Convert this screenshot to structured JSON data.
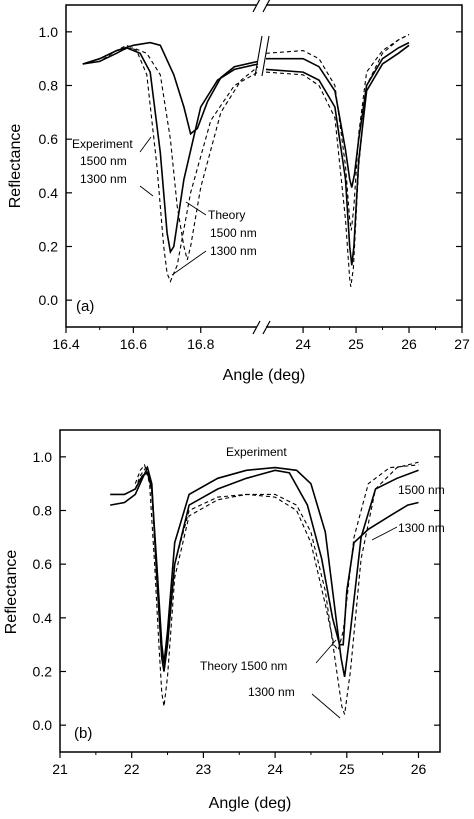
{
  "chart_data": [
    {
      "type": "line",
      "panel_label": "(a)",
      "xlabel": "Angle (deg)",
      "ylabel": "Reflectance",
      "ylim": [
        -0.1,
        1.1
      ],
      "xaxis": "broken",
      "x_segments": [
        {
          "range": [
            16.4,
            16.97
          ],
          "ticks": [
            16.4,
            16.6,
            16.8
          ]
        },
        {
          "range": [
            23.3,
            27.0
          ],
          "ticks": [
            24,
            25,
            26,
            27
          ]
        }
      ],
      "x_tick_labels": [
        "16.4",
        "16.6",
        "16.8",
        "24",
        "25",
        "26",
        "27"
      ],
      "yticks": [
        0.0,
        0.2,
        0.4,
        0.6,
        0.8,
        1.0
      ],
      "y_tick_labels": [
        "0.0",
        "0.2",
        "0.4",
        "0.6",
        "0.8",
        "1.0"
      ],
      "annotations": [
        "Experiment",
        "1500 nm",
        "1300 nm",
        "Theory",
        "1500 nm",
        "1300 nm"
      ],
      "series": [
        {
          "style": "solid",
          "points": [
            [
              16.45,
              0.88
            ],
            [
              16.5,
              0.89
            ],
            [
              16.55,
              0.92
            ],
            [
              16.58,
              0.94
            ],
            [
              16.62,
              0.92
            ],
            [
              16.65,
              0.85
            ],
            [
              16.68,
              0.55
            ],
            [
              16.7,
              0.25
            ],
            [
              16.71,
              0.18
            ],
            [
              16.72,
              0.2
            ],
            [
              16.75,
              0.45
            ],
            [
              16.8,
              0.72
            ],
            [
              16.85,
              0.82
            ],
            [
              16.9,
              0.86
            ],
            [
              16.97,
              0.88
            ],
            [
              23.3,
              0.86
            ],
            [
              24.0,
              0.85
            ],
            [
              24.3,
              0.82
            ],
            [
              24.6,
              0.72
            ],
            [
              24.8,
              0.45
            ],
            [
              24.88,
              0.2
            ],
            [
              24.92,
              0.13
            ],
            [
              24.96,
              0.2
            ],
            [
              25.05,
              0.52
            ],
            [
              25.2,
              0.78
            ],
            [
              25.5,
              0.88
            ],
            [
              25.8,
              0.92
            ],
            [
              26.0,
              0.95
            ]
          ]
        },
        {
          "style": "solid",
          "points": [
            [
              16.45,
              0.88
            ],
            [
              16.5,
              0.9
            ],
            [
              16.55,
              0.93
            ],
            [
              16.6,
              0.95
            ],
            [
              16.65,
              0.96
            ],
            [
              16.68,
              0.95
            ],
            [
              16.72,
              0.84
            ],
            [
              16.75,
              0.72
            ],
            [
              16.77,
              0.62
            ],
            [
              16.79,
              0.64
            ],
            [
              16.82,
              0.74
            ],
            [
              16.86,
              0.83
            ],
            [
              16.9,
              0.87
            ],
            [
              16.97,
              0.89
            ],
            [
              23.3,
              0.9
            ],
            [
              24.0,
              0.9
            ],
            [
              24.3,
              0.87
            ],
            [
              24.6,
              0.78
            ],
            [
              24.8,
              0.56
            ],
            [
              24.88,
              0.45
            ],
            [
              24.92,
              0.42
            ],
            [
              24.97,
              0.47
            ],
            [
              25.05,
              0.6
            ],
            [
              25.2,
              0.8
            ],
            [
              25.5,
              0.9
            ],
            [
              25.8,
              0.94
            ],
            [
              26.0,
              0.96
            ]
          ]
        },
        {
          "style": "dashed",
          "points": [
            [
              16.45,
              0.88
            ],
            [
              16.5,
              0.89
            ],
            [
              16.55,
              0.93
            ],
            [
              16.58,
              0.95
            ],
            [
              16.61,
              0.93
            ],
            [
              16.64,
              0.84
            ],
            [
              16.67,
              0.5
            ],
            [
              16.69,
              0.2
            ],
            [
              16.7,
              0.1
            ],
            [
              16.71,
              0.07
            ],
            [
              16.73,
              0.13
            ],
            [
              16.77,
              0.4
            ],
            [
              16.83,
              0.67
            ],
            [
              16.9,
              0.8
            ],
            [
              16.97,
              0.85
            ],
            [
              23.3,
              0.85
            ],
            [
              24.0,
              0.84
            ],
            [
              24.3,
              0.8
            ],
            [
              24.6,
              0.68
            ],
            [
              24.8,
              0.3
            ],
            [
              24.88,
              0.08
            ],
            [
              24.9,
              0.05
            ],
            [
              24.95,
              0.12
            ],
            [
              25.05,
              0.5
            ],
            [
              25.2,
              0.8
            ],
            [
              25.5,
              0.92
            ],
            [
              25.8,
              0.97
            ],
            [
              26.0,
              0.99
            ]
          ]
        },
        {
          "style": "dashed",
          "points": [
            [
              16.45,
              0.88
            ],
            [
              16.5,
              0.9
            ],
            [
              16.55,
              0.93
            ],
            [
              16.6,
              0.94
            ],
            [
              16.64,
              0.92
            ],
            [
              16.68,
              0.84
            ],
            [
              16.71,
              0.6
            ],
            [
              16.73,
              0.35
            ],
            [
              16.75,
              0.2
            ],
            [
              16.76,
              0.15
            ],
            [
              16.77,
              0.2
            ],
            [
              16.8,
              0.42
            ],
            [
              16.86,
              0.7
            ],
            [
              16.92,
              0.82
            ],
            [
              16.97,
              0.87
            ],
            [
              23.3,
              0.92
            ],
            [
              24.0,
              0.93
            ],
            [
              24.3,
              0.9
            ],
            [
              24.6,
              0.8
            ],
            [
              24.8,
              0.5
            ],
            [
              24.88,
              0.3
            ],
            [
              24.91,
              0.26
            ],
            [
              24.96,
              0.35
            ],
            [
              25.05,
              0.62
            ],
            [
              25.2,
              0.85
            ],
            [
              25.5,
              0.93
            ],
            [
              25.8,
              0.97
            ],
            [
              26.0,
              0.99
            ]
          ]
        }
      ]
    },
    {
      "type": "line",
      "panel_label": "(b)",
      "xlabel": "Angle (deg)",
      "ylabel": "Reflectance",
      "xlim": [
        21,
        26.3
      ],
      "ylim": [
        -0.1,
        1.1
      ],
      "xticks": [
        21,
        22,
        23,
        24,
        25,
        26
      ],
      "x_tick_labels": [
        "21",
        "22",
        "23",
        "24",
        "25",
        "26"
      ],
      "yticks": [
        0.0,
        0.2,
        0.4,
        0.6,
        0.8,
        1.0
      ],
      "y_tick_labels": [
        "0.0",
        "0.2",
        "0.4",
        "0.6",
        "0.8",
        "1.0"
      ],
      "annotations": [
        "Experiment",
        "1500 nm",
        "1300 nm",
        "Theory 1500 nm",
        "1300 nm"
      ],
      "series": [
        {
          "style": "solid",
          "points": [
            [
              21.7,
              0.86
            ],
            [
              21.9,
              0.86
            ],
            [
              22.05,
              0.88
            ],
            [
              22.15,
              0.93
            ],
            [
              22.22,
              0.94
            ],
            [
              22.28,
              0.88
            ],
            [
              22.35,
              0.6
            ],
            [
              22.42,
              0.3
            ],
            [
              22.45,
              0.23
            ],
            [
              22.5,
              0.35
            ],
            [
              22.6,
              0.68
            ],
            [
              22.8,
              0.86
            ],
            [
              23.2,
              0.92
            ],
            [
              23.6,
              0.95
            ],
            [
              24.0,
              0.96
            ],
            [
              24.3,
              0.95
            ],
            [
              24.5,
              0.9
            ],
            [
              24.7,
              0.72
            ],
            [
              24.85,
              0.4
            ],
            [
              24.92,
              0.25
            ],
            [
              24.97,
              0.18
            ],
            [
              25.05,
              0.35
            ],
            [
              25.2,
              0.7
            ],
            [
              25.4,
              0.88
            ],
            [
              25.7,
              0.92
            ],
            [
              26.0,
              0.95
            ]
          ]
        },
        {
          "style": "solid",
          "points": [
            [
              21.7,
              0.82
            ],
            [
              21.9,
              0.83
            ],
            [
              22.05,
              0.86
            ],
            [
              22.15,
              0.92
            ],
            [
              22.22,
              0.96
            ],
            [
              22.28,
              0.9
            ],
            [
              22.35,
              0.55
            ],
            [
              22.42,
              0.25
            ],
            [
              22.45,
              0.2
            ],
            [
              22.5,
              0.3
            ],
            [
              22.6,
              0.6
            ],
            [
              22.8,
              0.82
            ],
            [
              23.2,
              0.88
            ],
            [
              23.6,
              0.92
            ],
            [
              24.0,
              0.95
            ],
            [
              24.2,
              0.94
            ],
            [
              24.45,
              0.82
            ],
            [
              24.65,
              0.62
            ],
            [
              24.8,
              0.4
            ],
            [
              24.9,
              0.3
            ],
            [
              24.95,
              0.3
            ],
            [
              25.0,
              0.5
            ],
            [
              25.1,
              0.68
            ],
            [
              25.3,
              0.73
            ],
            [
              25.6,
              0.78
            ],
            [
              25.85,
              0.82
            ],
            [
              26.0,
              0.83
            ]
          ]
        },
        {
          "style": "dashed",
          "points": [
            [
              22.05,
              0.9
            ],
            [
              22.12,
              0.95
            ],
            [
              22.18,
              0.97
            ],
            [
              22.25,
              0.9
            ],
            [
              22.32,
              0.6
            ],
            [
              22.38,
              0.3
            ],
            [
              22.42,
              0.12
            ],
            [
              22.45,
              0.07
            ],
            [
              22.5,
              0.18
            ],
            [
              22.6,
              0.55
            ],
            [
              22.8,
              0.78
            ],
            [
              23.2,
              0.84
            ],
            [
              23.6,
              0.86
            ],
            [
              24.0,
              0.86
            ],
            [
              24.3,
              0.82
            ],
            [
              24.5,
              0.72
            ],
            [
              24.7,
              0.5
            ],
            [
              24.85,
              0.22
            ],
            [
              24.93,
              0.07
            ],
            [
              24.97,
              0.04
            ],
            [
              25.05,
              0.2
            ],
            [
              25.2,
              0.62
            ],
            [
              25.4,
              0.88
            ],
            [
              25.7,
              0.96
            ],
            [
              26.0,
              0.98
            ]
          ]
        },
        {
          "style": "dashed",
          "points": [
            [
              22.05,
              0.88
            ],
            [
              22.12,
              0.93
            ],
            [
              22.2,
              0.96
            ],
            [
              22.27,
              0.9
            ],
            [
              22.34,
              0.62
            ],
            [
              22.4,
              0.35
            ],
            [
              22.45,
              0.22
            ],
            [
              22.5,
              0.3
            ],
            [
              22.6,
              0.6
            ],
            [
              22.8,
              0.8
            ],
            [
              23.2,
              0.85
            ],
            [
              23.6,
              0.86
            ],
            [
              24.0,
              0.85
            ],
            [
              24.3,
              0.8
            ],
            [
              24.5,
              0.68
            ],
            [
              24.7,
              0.45
            ],
            [
              24.82,
              0.3
            ],
            [
              24.88,
              0.28
            ],
            [
              24.95,
              0.35
            ],
            [
              25.1,
              0.7
            ],
            [
              25.3,
              0.9
            ],
            [
              25.6,
              0.96
            ],
            [
              26.0,
              0.97
            ]
          ]
        }
      ]
    }
  ]
}
